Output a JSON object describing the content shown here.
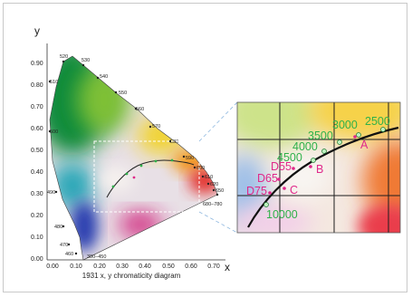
{
  "axes": {
    "x_letter": "x",
    "y_letter": "y",
    "x_ticks": [
      "0.00",
      "0.10",
      "0.20",
      "0.30",
      "0.40",
      "0.50",
      "0.60",
      "0.70"
    ],
    "y_ticks": [
      "0.00",
      "0.10",
      "0.20",
      "0.30",
      "0.40",
      "0.50",
      "0.60",
      "0.70",
      "0.80",
      "0.90"
    ]
  },
  "caption": "1931 x, y chromaticity diagram",
  "wavelength_labels": [
    "520",
    "530",
    "540",
    "550",
    "560",
    "570",
    "580",
    "590",
    "600",
    "610",
    "620",
    "650",
    "680–780",
    "510",
    "500",
    "490",
    "480",
    "470",
    "460",
    "380–450"
  ],
  "inset": {
    "temperatures": [
      "2500",
      "3000",
      "3500",
      "4000",
      "4500",
      "10000"
    ],
    "illuminants": [
      "A",
      "B",
      "D55",
      "C",
      "D65",
      "D75"
    ]
  },
  "colors": {
    "temperature_label": "#2fb14a",
    "illuminant_label": "#e0288a",
    "zoom_guide": "#8eb7df"
  }
}
